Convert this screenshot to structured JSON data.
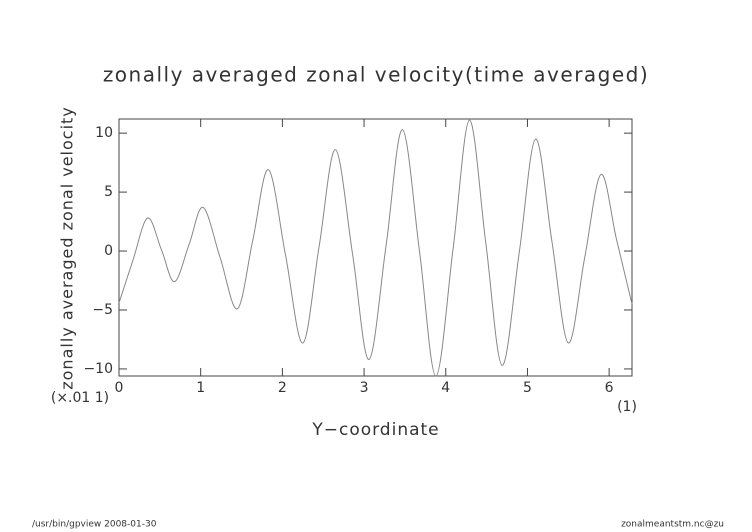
{
  "chart_data": {
    "type": "line",
    "title": "zonally averaged zonal velocity(time averaged)",
    "x_label": "Y−coordinate",
    "y_label": "zonally averaged zonal velocity",
    "y_unit": "(×.01 1)",
    "x_unit": "(1)",
    "footer_left": "/usr/bin/gpview   2008-01-30",
    "footer_right": "zonalmeantstm.nc@zu",
    "x": [
      0,
      0.17,
      0.35,
      0.52,
      0.68,
      0.86,
      1.03,
      1.24,
      1.45,
      1.64,
      1.83,
      2.04,
      2.25,
      2.45,
      2.65,
      2.86,
      3.06,
      3.27,
      3.47,
      3.68,
      3.88,
      4.09,
      4.29,
      4.49,
      4.69,
      4.9,
      5.1,
      5.3,
      5.5,
      5.7,
      5.9,
      6.09,
      6.28
    ],
    "series": [
      {
        "color": "#888888",
        "values": [
          -4.4,
          -0.8,
          2.8,
          0.1,
          -2.6,
          0.6,
          3.7,
          -0.6,
          -4.9,
          1.0,
          6.9,
          -0.4,
          -7.8,
          0.4,
          8.6,
          -0.3,
          -9.2,
          0.5,
          10.3,
          -0.1,
          -10.6,
          0.2,
          11.1,
          0.7,
          -9.7,
          -0.1,
          9.5,
          0.8,
          -7.8,
          -0.6,
          6.5,
          1.0,
          -4.5
        ]
      }
    ],
    "xlim": [
      0,
      6.28
    ],
    "ylim": [
      -10.6,
      11.2
    ],
    "xticks": [
      0,
      1,
      2,
      3,
      4,
      5,
      6
    ],
    "yticks": [
      {
        "value": -10,
        "label": "−10"
      },
      {
        "value": -5,
        "label": "−5"
      },
      0,
      5,
      10
    ],
    "grid": false
  }
}
